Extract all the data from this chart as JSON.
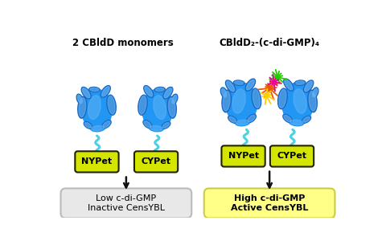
{
  "title_left": "2 CBldD monomers",
  "title_right": "CBldD₂-(c-di-GMP)₄",
  "label_nypet": "NYPet",
  "label_cypet": "CYPet",
  "label_low_1": "Low c-di-GMP",
  "label_low_2": "Inactive CensYBL",
  "label_high_1": "High c-di-GMP",
  "label_high_2": "Active CensYBL",
  "bg_color": "#ffffff",
  "protein_blue_dark": "#1565c0",
  "protein_blue_mid": "#2196f3",
  "protein_blue_light": "#64b5f6",
  "protein_blue_pale": "#bbdefb",
  "cyan_linker": "#4dd0e1",
  "green_box_color": "#d4e600",
  "green_box_edge": "#222200",
  "low_box_color": "#e8e8e8",
  "low_box_edge": "#bbbbbb",
  "high_box_color": "#ffff88",
  "high_box_edge": "#cccc44",
  "arrow_color": "#111111",
  "mol_green": "#22cc00",
  "mol_orange": "#ee5500",
  "mol_yellow": "#ffcc00",
  "mol_pink": "#ee0099"
}
